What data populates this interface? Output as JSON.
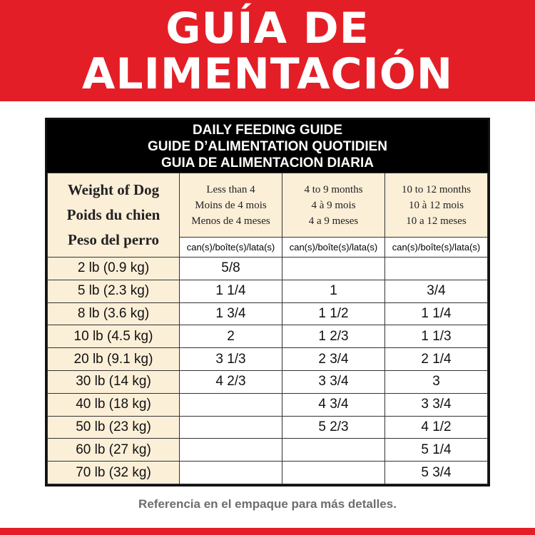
{
  "banner": {
    "line1": "GUÍA DE",
    "line2": "ALIMENTACIÓN"
  },
  "table_title": [
    "DAILY FEEDING GUIDE",
    "GUIDE D’ALIMENTATION QUOTIDIEN",
    "GUIA DE ALIMENTACION DIARIA"
  ],
  "weight_header": [
    "Weight of Dog",
    "Poids du chien",
    "Peso del perro"
  ],
  "age_headers": [
    [
      "Less than 4",
      "Moins de 4 mois",
      "Menos de 4 meses"
    ],
    [
      "4 to 9 months",
      "4 à 9 mois",
      "4 a 9 meses"
    ],
    [
      "10 to 12 months",
      "10 à 12 mois",
      "10 a 12 meses"
    ]
  ],
  "unit": "can(s)/boîte(s)/lata(s)",
  "rows": [
    [
      "2 lb (0.9 kg)",
      "5/8",
      "",
      ""
    ],
    [
      "5 lb (2.3 kg)",
      "1 1/4",
      "1",
      "3/4"
    ],
    [
      "8 lb (3.6 kg)",
      "1 3/4",
      "1 1/2",
      "1 1/4"
    ],
    [
      "10 lb (4.5 kg)",
      "2",
      "1 2/3",
      "1 1/3"
    ],
    [
      "20 lb (9.1 kg)",
      "3 1/3",
      "2 3/4",
      "2 1/4"
    ],
    [
      "30 lb (14 kg)",
      "4 2/3",
      "3 3/4",
      "3"
    ],
    [
      "40 lb (18 kg)",
      "",
      "4 3/4",
      "3 3/4"
    ],
    [
      "50 lb (23 kg)",
      "",
      "5 2/3",
      "4 1/2"
    ],
    [
      "60 lb (27 kg)",
      "",
      "",
      "5 1/4"
    ],
    [
      "70 lb (32 kg)",
      "",
      "",
      "5 3/4"
    ]
  ],
  "footer": "Referencia en el empaque para más detalles.",
  "colors": {
    "banner": "#e41e26",
    "header_bg": "#000000",
    "cream": "#fcefd8",
    "footer_text": "#6d6d6d"
  }
}
